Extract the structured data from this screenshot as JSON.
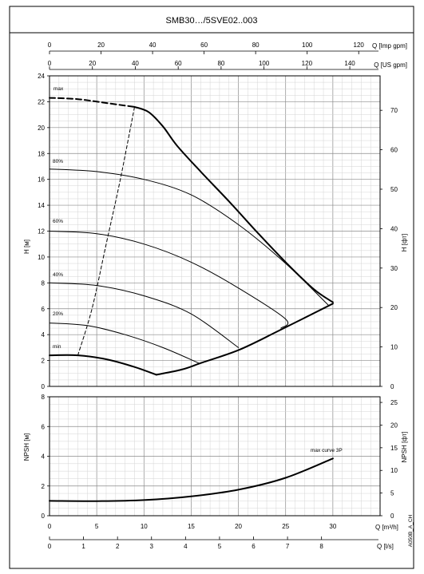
{
  "title": "SMB30…/5SVE02..003",
  "code": "A050B_A_CH",
  "axes": {
    "imp": {
      "label": "Q [Imp gpm]",
      "ticks": [
        "0",
        "20",
        "40",
        "60",
        "80",
        "100",
        "120"
      ]
    },
    "us": {
      "label": "Q [US gpm]",
      "ticks": [
        "0",
        "20",
        "40",
        "60",
        "80",
        "100",
        "120",
        "140"
      ]
    },
    "m3h": {
      "label": "Q [m³/h]",
      "ticks": [
        "0",
        "5",
        "10",
        "15",
        "20",
        "25",
        "30"
      ]
    },
    "ls": {
      "label": "Q [l/s]",
      "ticks": [
        "0",
        "1",
        "2",
        "3",
        "4",
        "5",
        "6",
        "7",
        "8"
      ]
    },
    "h_m": {
      "label": "H [м]",
      "ticks": [
        "0",
        "2",
        "4",
        "6",
        "8",
        "10",
        "12",
        "14",
        "16",
        "18",
        "20",
        "22",
        "24"
      ]
    },
    "h_ft": {
      "label": "H [фт]",
      "ticks": [
        "0",
        "10",
        "20",
        "30",
        "40",
        "50",
        "60",
        "70"
      ]
    },
    "npsh_m": {
      "label": "NPSH [м]",
      "ticks": [
        "0",
        "2",
        "4",
        "6",
        "8"
      ]
    },
    "npsh_ft": {
      "label": "NPSH [фт]",
      "ticks": [
        "0",
        "5",
        "10",
        "15",
        "20",
        "25"
      ]
    }
  },
  "labels": {
    "max": "max",
    "s80": "80%",
    "s60": "60%",
    "s40": "40%",
    "s20": "20%",
    "min": "min",
    "npsh_note": "max curve 3P"
  },
  "chart_data": [
    {
      "type": "line",
      "name": "head",
      "title": "SMB30…/5SVE02..003",
      "xlabel": "Q [m³/h]",
      "ylabel": "H [м]",
      "xlim": [
        0,
        35
      ],
      "ylim": [
        0,
        24
      ],
      "grid": true,
      "series": [
        {
          "name": "max",
          "x": [
            0,
            3,
            6,
            9
          ],
          "y": [
            22.3,
            22.2,
            21.9,
            21.6
          ],
          "style": "dashed"
        },
        {
          "name": "max",
          "x": [
            9,
            10.5,
            12,
            13.5,
            16,
            19,
            22,
            25,
            28,
            30
          ],
          "y": [
            21.6,
            21.2,
            20.1,
            18.6,
            16.6,
            14.3,
            11.9,
            9.6,
            7.5,
            6.5
          ],
          "style": "solid"
        },
        {
          "name": "80%",
          "x": [
            0,
            5,
            10,
            15,
            20,
            25,
            29.5
          ],
          "y": [
            16.8,
            16.6,
            16.0,
            14.8,
            12.5,
            9.5,
            6.3
          ]
        },
        {
          "name": "60%",
          "x": [
            0,
            5,
            10,
            15,
            20,
            25,
            24.5
          ],
          "y": [
            12.0,
            11.8,
            11.0,
            9.6,
            7.6,
            5.2,
            4.5
          ]
        },
        {
          "name": "40%",
          "x": [
            0,
            5,
            10,
            15,
            20
          ],
          "y": [
            8.0,
            7.8,
            7.0,
            5.6,
            3.0
          ]
        },
        {
          "name": "20%",
          "x": [
            0,
            4,
            8,
            12,
            15.8
          ],
          "y": [
            4.9,
            4.7,
            4.0,
            3.0,
            1.8
          ]
        },
        {
          "name": "min",
          "x": [
            0,
            3,
            6,
            9,
            11.3
          ],
          "y": [
            2.4,
            2.4,
            2.1,
            1.5,
            0.9
          ]
        },
        {
          "name": "lower limit",
          "x": [
            11.3,
            14,
            16,
            20,
            24,
            30
          ],
          "y": [
            0.9,
            1.3,
            1.8,
            2.8,
            4.2,
            6.4
          ]
        },
        {
          "name": "min-max limit",
          "x": [
            3,
            4.5,
            6,
            7.5,
            9
          ],
          "y": [
            2.4,
            6.0,
            11.0,
            16.0,
            21.6
          ],
          "style": "dashed"
        }
      ]
    },
    {
      "type": "line",
      "name": "npsh",
      "xlabel": "Q [m³/h]",
      "ylabel": "NPSH [м]",
      "xlim": [
        0,
        35
      ],
      "ylim": [
        0,
        8
      ],
      "grid": true,
      "series": [
        {
          "name": "max curve 3P",
          "x": [
            0,
            5,
            10,
            15,
            20,
            25,
            30
          ],
          "y": [
            1.0,
            0.98,
            1.05,
            1.3,
            1.75,
            2.55,
            3.85
          ]
        }
      ]
    }
  ]
}
